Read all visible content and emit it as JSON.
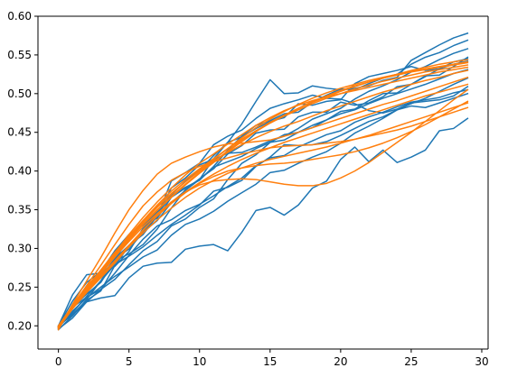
{
  "chart_data": {
    "type": "line",
    "title": "",
    "xlabel": "",
    "ylabel": "",
    "xlim": [
      -1.45,
      30.45
    ],
    "ylim": [
      0.17,
      0.6
    ],
    "grid": false,
    "x_ticks": [
      0,
      5,
      10,
      15,
      20,
      25,
      30
    ],
    "y_ticks": [
      0.2,
      0.25,
      0.3,
      0.35,
      0.4,
      0.45,
      0.5,
      0.55,
      0.6
    ],
    "x_tick_labels": [
      "0",
      "5",
      "10",
      "15",
      "20",
      "25",
      "30"
    ],
    "y_tick_labels": [
      "0.20",
      "0.25",
      "0.30",
      "0.35",
      "0.40",
      "0.45",
      "0.50",
      "0.55",
      "0.60"
    ],
    "colors": {
      "blue": "#1f77b4",
      "orange": "#ff7f0e",
      "axis": "#000000",
      "background": "#ffffff"
    },
    "x": [
      0,
      1,
      2,
      3,
      4,
      5,
      6,
      7,
      8,
      9,
      10,
      11,
      12,
      13,
      14,
      15,
      16,
      17,
      18,
      19,
      20,
      21,
      22,
      23,
      24,
      25,
      26,
      27,
      28,
      29
    ],
    "series": [
      {
        "color": "blue",
        "values": [
          0.2,
          0.232,
          0.256,
          0.27,
          0.297,
          0.318,
          0.33,
          0.347,
          0.369,
          0.387,
          0.401,
          0.42,
          0.437,
          0.461,
          0.49,
          0.518,
          0.5,
          0.501,
          0.51,
          0.507,
          0.505,
          0.507,
          0.51,
          0.517,
          0.521,
          0.543,
          0.553,
          0.563,
          0.572,
          0.578
        ]
      },
      {
        "color": "blue",
        "values": [
          0.2,
          0.224,
          0.241,
          0.256,
          0.284,
          0.316,
          0.331,
          0.339,
          0.366,
          0.378,
          0.389,
          0.416,
          0.437,
          0.444,
          0.455,
          0.464,
          0.469,
          0.487,
          0.485,
          0.49,
          0.492,
          0.513,
          0.522,
          0.526,
          0.53,
          0.535,
          0.53,
          0.532,
          0.538,
          0.542
        ]
      },
      {
        "color": "blue",
        "values": [
          0.2,
          0.24,
          0.266,
          0.268,
          0.277,
          0.296,
          0.326,
          0.344,
          0.368,
          0.379,
          0.388,
          0.406,
          0.427,
          0.445,
          0.459,
          0.465,
          0.474,
          0.476,
          0.489,
          0.498,
          0.506,
          0.505,
          0.513,
          0.52,
          0.525,
          0.538,
          0.547,
          0.553,
          0.562,
          0.569
        ]
      },
      {
        "color": "blue",
        "values": [
          0.2,
          0.214,
          0.231,
          0.247,
          0.26,
          0.279,
          0.297,
          0.309,
          0.329,
          0.338,
          0.353,
          0.364,
          0.389,
          0.41,
          0.421,
          0.437,
          0.447,
          0.45,
          0.456,
          0.466,
          0.477,
          0.48,
          0.491,
          0.5,
          0.501,
          0.512,
          0.522,
          0.532,
          0.541,
          0.545
        ]
      },
      {
        "color": "blue",
        "values": [
          0.195,
          0.213,
          0.234,
          0.258,
          0.279,
          0.29,
          0.302,
          0.317,
          0.331,
          0.343,
          0.356,
          0.374,
          0.379,
          0.388,
          0.406,
          0.418,
          0.434,
          0.433,
          0.434,
          0.438,
          0.446,
          0.455,
          0.464,
          0.47,
          0.479,
          0.484,
          0.482,
          0.488,
          0.494,
          0.5
        ]
      },
      {
        "color": "blue",
        "values": [
          0.197,
          0.224,
          0.237,
          0.247,
          0.268,
          0.291,
          0.312,
          0.329,
          0.337,
          0.349,
          0.357,
          0.368,
          0.38,
          0.391,
          0.407,
          0.417,
          0.42,
          0.431,
          0.439,
          0.447,
          0.452,
          0.463,
          0.47,
          0.476,
          0.483,
          0.489,
          0.492,
          0.495,
          0.501,
          0.505
        ]
      },
      {
        "color": "blue",
        "values": [
          0.198,
          0.219,
          0.236,
          0.25,
          0.264,
          0.276,
          0.289,
          0.298,
          0.317,
          0.331,
          0.338,
          0.348,
          0.361,
          0.372,
          0.383,
          0.398,
          0.401,
          0.41,
          0.418,
          0.425,
          0.436,
          0.449,
          0.458,
          0.468,
          0.479,
          0.487,
          0.494,
          0.503,
          0.512,
          0.52
        ]
      },
      {
        "color": "blue",
        "values": [
          0.199,
          0.224,
          0.242,
          0.266,
          0.284,
          0.293,
          0.305,
          0.325,
          0.352,
          0.376,
          0.39,
          0.403,
          0.422,
          0.433,
          0.449,
          0.453,
          0.454,
          0.47,
          0.476,
          0.476,
          0.489,
          0.485,
          0.488,
          0.496,
          0.509,
          0.512,
          0.523,
          0.524,
          0.535,
          0.547
        ]
      },
      {
        "color": "blue",
        "values": [
          0.2,
          0.215,
          0.233,
          0.245,
          0.278,
          0.303,
          0.322,
          0.341,
          0.387,
          0.398,
          0.41,
          0.434,
          0.445,
          0.453,
          0.468,
          0.481,
          0.487,
          0.492,
          0.498,
          0.494,
          0.493,
          0.487,
          0.478,
          0.475,
          0.48,
          0.488,
          0.49,
          0.492,
          0.497,
          0.509
        ]
      },
      {
        "color": "blue",
        "values": [
          0.198,
          0.217,
          0.238,
          0.258,
          0.287,
          0.304,
          0.318,
          0.342,
          0.378,
          0.391,
          0.408,
          0.415,
          0.423,
          0.424,
          0.431,
          0.439,
          0.445,
          0.455,
          0.467,
          0.474,
          0.481,
          0.493,
          0.503,
          0.51,
          0.518,
          0.528,
          0.535,
          0.544,
          0.552,
          0.558
        ]
      },
      {
        "color": "blue",
        "values": [
          0.196,
          0.21,
          0.231,
          0.236,
          0.239,
          0.262,
          0.277,
          0.281,
          0.282,
          0.299,
          0.303,
          0.305,
          0.297,
          0.321,
          0.349,
          0.353,
          0.343,
          0.356,
          0.378,
          0.387,
          0.415,
          0.431,
          0.412,
          0.427,
          0.411,
          0.418,
          0.427,
          0.452,
          0.455,
          0.468
        ]
      },
      {
        "color": "blue",
        "values": [
          0.2,
          0.225,
          0.248,
          0.262,
          0.287,
          0.299,
          0.321,
          0.336,
          0.359,
          0.375,
          0.389,
          0.405,
          0.412,
          0.419,
          0.429,
          0.437,
          0.44,
          0.45,
          0.459,
          0.466,
          0.474,
          0.479,
          0.487,
          0.494,
          0.5,
          0.506,
          0.512,
          0.519,
          0.526,
          0.531
        ]
      },
      {
        "color": "orange",
        "values": [
          0.195,
          0.228,
          0.258,
          0.288,
          0.32,
          0.35,
          0.375,
          0.396,
          0.41,
          0.418,
          0.425,
          0.431,
          0.435,
          0.436,
          0.438,
          0.44,
          0.445,
          0.45,
          0.456,
          0.462,
          0.468,
          0.474,
          0.48,
          0.486,
          0.491,
          0.497,
          0.503,
          0.509,
          0.515,
          0.521
        ]
      },
      {
        "color": "orange",
        "values": [
          0.197,
          0.226,
          0.252,
          0.278,
          0.305,
          0.331,
          0.355,
          0.373,
          0.388,
          0.398,
          0.406,
          0.412,
          0.417,
          0.422,
          0.426,
          0.43,
          0.432,
          0.433,
          0.434,
          0.436,
          0.438,
          0.441,
          0.445,
          0.449,
          0.453,
          0.458,
          0.464,
          0.47,
          0.476,
          0.482
        ]
      },
      {
        "color": "orange",
        "values": [
          0.2,
          0.226,
          0.25,
          0.27,
          0.294,
          0.318,
          0.34,
          0.36,
          0.378,
          0.395,
          0.41,
          0.422,
          0.435,
          0.447,
          0.459,
          0.469,
          0.478,
          0.485,
          0.491,
          0.496,
          0.5,
          0.504,
          0.508,
          0.512,
          0.516,
          0.52,
          0.524,
          0.528,
          0.531,
          0.534
        ]
      },
      {
        "color": "orange",
        "values": [
          0.199,
          0.225,
          0.248,
          0.267,
          0.289,
          0.311,
          0.331,
          0.349,
          0.366,
          0.382,
          0.397,
          0.411,
          0.425,
          0.438,
          0.451,
          0.462,
          0.472,
          0.481,
          0.49,
          0.497,
          0.504,
          0.51,
          0.515,
          0.52,
          0.524,
          0.528,
          0.531,
          0.534,
          0.537,
          0.54
        ]
      },
      {
        "color": "orange",
        "values": [
          0.199,
          0.226,
          0.251,
          0.27,
          0.291,
          0.312,
          0.332,
          0.35,
          0.367,
          0.383,
          0.398,
          0.412,
          0.426,
          0.44,
          0.452,
          0.463,
          0.472,
          0.481,
          0.489,
          0.496,
          0.503,
          0.509,
          0.515,
          0.52,
          0.525,
          0.53,
          0.534,
          0.538,
          0.541,
          0.544
        ]
      },
      {
        "color": "orange",
        "values": [
          0.198,
          0.227,
          0.25,
          0.272,
          0.295,
          0.316,
          0.336,
          0.354,
          0.371,
          0.386,
          0.401,
          0.415,
          0.429,
          0.443,
          0.456,
          0.467,
          0.477,
          0.486,
          0.494,
          0.501,
          0.507,
          0.512,
          0.517,
          0.521,
          0.525,
          0.529,
          0.532,
          0.535,
          0.538,
          0.541
        ]
      },
      {
        "color": "orange",
        "values": [
          0.2,
          0.224,
          0.246,
          0.265,
          0.284,
          0.304,
          0.324,
          0.342,
          0.358,
          0.372,
          0.384,
          0.393,
          0.4,
          0.404,
          0.407,
          0.409,
          0.41,
          0.412,
          0.415,
          0.418,
          0.421,
          0.425,
          0.43,
          0.436,
          0.443,
          0.451,
          0.46,
          0.47,
          0.48,
          0.49
        ]
      },
      {
        "color": "orange",
        "values": [
          0.197,
          0.222,
          0.243,
          0.262,
          0.281,
          0.302,
          0.323,
          0.343,
          0.36,
          0.373,
          0.382,
          0.387,
          0.389,
          0.39,
          0.389,
          0.386,
          0.383,
          0.381,
          0.381,
          0.384,
          0.391,
          0.4,
          0.411,
          0.424,
          0.437,
          0.45,
          0.464,
          0.478,
          0.492,
          0.505
        ]
      },
      {
        "color": "orange",
        "values": [
          0.198,
          0.225,
          0.249,
          0.27,
          0.292,
          0.313,
          0.334,
          0.353,
          0.37,
          0.386,
          0.4,
          0.413,
          0.424,
          0.434,
          0.443,
          0.451,
          0.458,
          0.464,
          0.471,
          0.478,
          0.484,
          0.49,
          0.496,
          0.502,
          0.507,
          0.512,
          0.517,
          0.521,
          0.526,
          0.53
        ]
      },
      {
        "color": "orange",
        "values": [
          0.197,
          0.224,
          0.249,
          0.27,
          0.293,
          0.315,
          0.336,
          0.356,
          0.374,
          0.389,
          0.403,
          0.416,
          0.429,
          0.441,
          0.452,
          0.462,
          0.471,
          0.479,
          0.487,
          0.494,
          0.5,
          0.506,
          0.511,
          0.516,
          0.52,
          0.524,
          0.528,
          0.531,
          0.534,
          0.537
        ]
      },
      {
        "color": "orange",
        "values": [
          0.198,
          0.223,
          0.245,
          0.264,
          0.283,
          0.302,
          0.32,
          0.337,
          0.352,
          0.366,
          0.378,
          0.388,
          0.397,
          0.404,
          0.41,
          0.415,
          0.419,
          0.423,
          0.427,
          0.431,
          0.436,
          0.441,
          0.446,
          0.452,
          0.458,
          0.464,
          0.47,
          0.476,
          0.482,
          0.488
        ]
      },
      {
        "color": "orange",
        "values": [
          0.199,
          0.225,
          0.248,
          0.268,
          0.289,
          0.309,
          0.328,
          0.345,
          0.36,
          0.373,
          0.385,
          0.396,
          0.406,
          0.415,
          0.423,
          0.43,
          0.437,
          0.443,
          0.449,
          0.455,
          0.461,
          0.467,
          0.473,
          0.479,
          0.485,
          0.491,
          0.497,
          0.502,
          0.507,
          0.512
        ]
      }
    ]
  }
}
